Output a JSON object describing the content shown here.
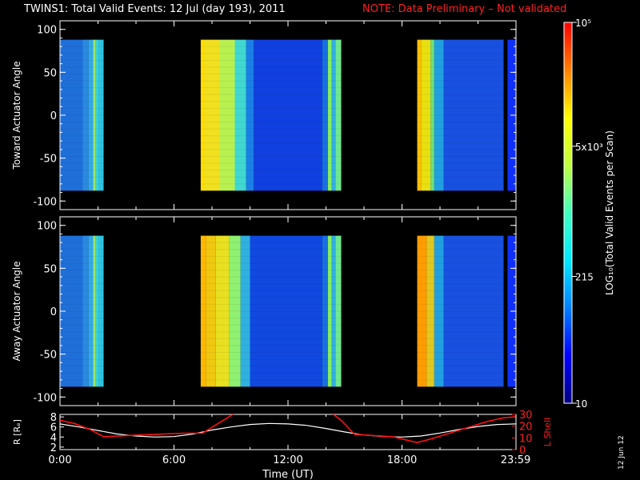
{
  "title": "TWINS1: Total Valid Events: 12 Jul (day 193), 2011",
  "note": "NOTE: Data Preliminary – Not validated",
  "side_date": "12 Jun 12",
  "chart_data": [
    {
      "type": "heatmap",
      "ylabel": "Toward Actuator Angle",
      "yticks": [
        100,
        50,
        0,
        -50,
        -100
      ],
      "ylim": [
        -110,
        110
      ],
      "xlim": [
        0,
        24
      ],
      "data_ylim": [
        -88,
        88
      ],
      "gaps": [
        [
          2.3,
          7.4
        ],
        [
          14.8,
          18.8
        ],
        [
          23.35,
          23.55
        ]
      ],
      "bands": [
        [
          0.0,
          1.2,
          "#1f6fd9"
        ],
        [
          1.2,
          1.5,
          "#2a8ae0"
        ],
        [
          1.5,
          1.75,
          "#33a8e8"
        ],
        [
          1.75,
          1.85,
          "#a8f06a"
        ],
        [
          1.85,
          2.0,
          "#40d4c8"
        ],
        [
          2.0,
          2.3,
          "#2fc2e0"
        ],
        [
          7.4,
          7.6,
          "#ffdd00"
        ],
        [
          7.6,
          8.4,
          "#f0e020"
        ],
        [
          8.4,
          9.2,
          "#b8f050"
        ],
        [
          9.2,
          9.8,
          "#40d8d0"
        ],
        [
          9.8,
          10.2,
          "#1a80e8"
        ],
        [
          10.2,
          13.8,
          "#1040e0"
        ],
        [
          13.8,
          14.1,
          "#1870e0"
        ],
        [
          14.1,
          14.3,
          "#88f060"
        ],
        [
          14.3,
          14.5,
          "#30b0e0"
        ],
        [
          14.5,
          14.8,
          "#70e890"
        ],
        [
          18.8,
          19.0,
          "#ffc000"
        ],
        [
          19.0,
          19.5,
          "#e8e010"
        ],
        [
          19.5,
          19.7,
          "#70e080"
        ],
        [
          19.7,
          20.2,
          "#20a0e0"
        ],
        [
          20.2,
          23.35,
          "#1850e0"
        ],
        [
          23.55,
          24.0,
          "#1030ff"
        ]
      ]
    },
    {
      "type": "heatmap",
      "ylabel": "Away Actuator Angle",
      "yticks": [
        100,
        50,
        0,
        -50,
        -100
      ],
      "ylim": [
        -110,
        110
      ],
      "xlim": [
        0,
        24
      ],
      "data_ylim": [
        -88,
        88
      ],
      "gaps": [
        [
          2.3,
          7.4
        ],
        [
          14.8,
          18.8
        ],
        [
          23.35,
          23.55
        ]
      ],
      "bands": [
        [
          0.0,
          1.2,
          "#1f6fd9"
        ],
        [
          1.2,
          1.5,
          "#2a8ae0"
        ],
        [
          1.5,
          1.75,
          "#33a8e8"
        ],
        [
          1.75,
          1.85,
          "#a8f06a"
        ],
        [
          1.85,
          2.0,
          "#40d4c8"
        ],
        [
          2.0,
          2.3,
          "#2fc2e0"
        ],
        [
          7.4,
          7.7,
          "#ffb800"
        ],
        [
          7.7,
          8.2,
          "#f0c810"
        ],
        [
          8.2,
          8.9,
          "#e8e020"
        ],
        [
          8.9,
          9.5,
          "#90f070"
        ],
        [
          9.5,
          10.0,
          "#30b0e0"
        ],
        [
          10.0,
          13.8,
          "#1048e0"
        ],
        [
          13.8,
          14.1,
          "#1870e0"
        ],
        [
          14.1,
          14.3,
          "#88f060"
        ],
        [
          14.3,
          14.5,
          "#30b0e0"
        ],
        [
          14.5,
          14.8,
          "#70e890"
        ],
        [
          18.8,
          19.3,
          "#ff9c00"
        ],
        [
          19.3,
          19.7,
          "#e0c820"
        ],
        [
          19.7,
          20.2,
          "#20a0e0"
        ],
        [
          20.2,
          23.35,
          "#1850e0"
        ],
        [
          23.55,
          24.0,
          "#1030ff"
        ]
      ]
    },
    {
      "type": "line",
      "xlabel": "Time (UT)",
      "xticks": [
        "0:00",
        "6:00",
        "12:00",
        "18:00",
        "23:59"
      ],
      "xtick_values": [
        0,
        6,
        12,
        18,
        23.98
      ],
      "xlim": [
        0,
        24
      ],
      "ylabel": "R [Rₑ]",
      "yticks": [
        2,
        4,
        6,
        8
      ],
      "ylim": [
        1.5,
        8.5
      ],
      "y2label": "L Shell",
      "y2ticks": [
        0,
        10,
        20,
        30
      ],
      "y2lim": [
        0,
        30
      ],
      "series": [
        {
          "axis": "left",
          "color": "#ffffff",
          "x": [
            0,
            1,
            2,
            3,
            4,
            5,
            6,
            7,
            8,
            9,
            10,
            11,
            12,
            13,
            14,
            15,
            16,
            17,
            18,
            19,
            20,
            21,
            22,
            23,
            24
          ],
          "y": [
            6.6,
            6.0,
            5.3,
            4.6,
            4.2,
            4.0,
            4.1,
            4.6,
            5.4,
            6.0,
            6.5,
            6.7,
            6.6,
            6.3,
            5.7,
            5.0,
            4.4,
            4.1,
            4.0,
            4.2,
            4.8,
            5.5,
            6.1,
            6.5,
            6.6
          ]
        },
        {
          "axis": "right",
          "color": "#ff1010",
          "x": [
            0,
            0.8,
            1.6,
            2.3,
            3.5,
            5.0,
            6.5,
            7.5,
            8.0,
            8.6,
            9.2,
            14.3,
            14.8,
            15.5,
            16.5,
            17.5,
            18.8,
            19.5,
            20.5,
            21.5,
            22.5,
            23.3,
            24
          ],
          "y": [
            25,
            22,
            17,
            11,
            12,
            13,
            14,
            14,
            19,
            25,
            31,
            31,
            25,
            13,
            12,
            11,
            6,
            9,
            14,
            19,
            24,
            27,
            28
          ]
        }
      ]
    },
    {
      "type": "heatmap",
      "role": "colorbar",
      "ylabel": "LOG₁₀(Total Valid Events per Scan)",
      "ticks": [
        {
          "label": "10⁵",
          "value": 5.0
        },
        {
          "label": "5x10³",
          "value": 3.699
        },
        {
          "label": "215",
          "value": 2.332
        },
        {
          "label": "10",
          "value": 1.0
        }
      ],
      "range": [
        1.0,
        5.0
      ],
      "stops": [
        "#000080",
        "#0000ff",
        "#0080ff",
        "#00e8ff",
        "#40ffc0",
        "#c0ff40",
        "#ffff00",
        "#ff8000",
        "#ff0000"
      ]
    }
  ]
}
